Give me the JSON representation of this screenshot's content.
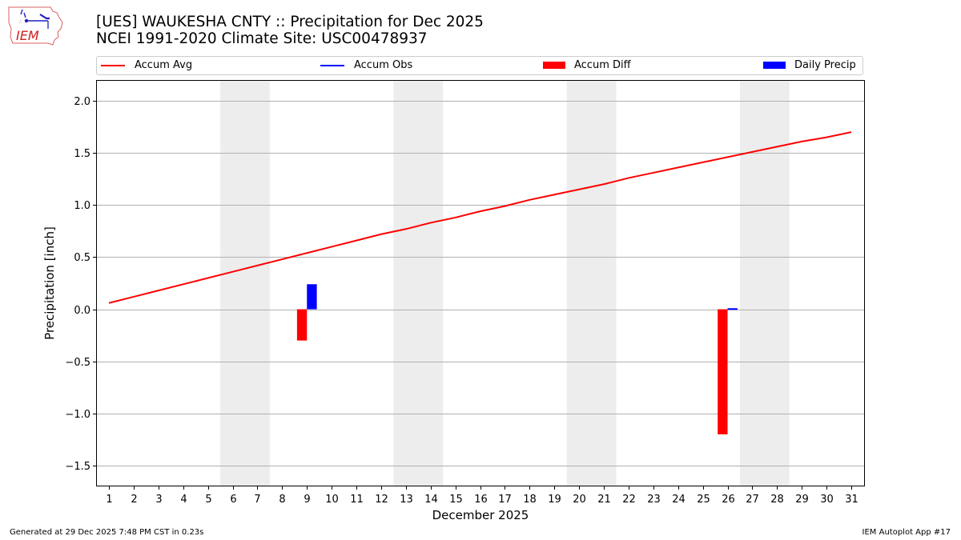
{
  "header": {
    "title_line1": "[UES] WAUKESHA CNTY :: Precipitation for Dec 2025",
    "title_line2": "NCEI 1991-2020 Climate Site: USC00478937",
    "logo_text": "IEM"
  },
  "legend": [
    {
      "label": "Accum Avg",
      "kind": "line",
      "color": "#ff0000"
    },
    {
      "label": "Accum Obs",
      "kind": "line",
      "color": "#0000ff"
    },
    {
      "label": "Accum Diff",
      "kind": "patch",
      "color": "#ff0000"
    },
    {
      "label": "Daily Precip",
      "kind": "patch",
      "color": "#0000ff"
    }
  ],
  "footer": {
    "generated": "Generated at 29 Dec 2025 7:48 PM CST in 0.23s",
    "app": "IEM Autoplot App #17"
  },
  "colors": {
    "accum_avg": "#ff0000",
    "accum_obs": "#0000ff",
    "accum_diff": "#ff0000",
    "daily_precip": "#0000ff",
    "weekend_shade": "#ededed",
    "grid": "#b0b0b0"
  },
  "chart_data": {
    "type": "bar",
    "title": "[UES] WAUKESHA CNTY :: Precipitation for Dec 2025",
    "subtitle": "NCEI 1991-2020 Climate Site: USC00478937",
    "xlabel": "December 2025",
    "ylabel": "Precipitation [inch]",
    "ylim": [
      -1.7,
      2.2
    ],
    "xlim": [
      0.48,
      31.55
    ],
    "yticks": [
      -1.5,
      -1.0,
      -0.5,
      0.0,
      0.5,
      1.0,
      1.5,
      2.0
    ],
    "ytick_labels": [
      "−1.5",
      "−1.0",
      "−0.5",
      "0.0",
      "0.5",
      "1.0",
      "1.5",
      "2.0"
    ],
    "categories": [
      1,
      2,
      3,
      4,
      5,
      6,
      7,
      8,
      9,
      10,
      11,
      12,
      13,
      14,
      15,
      16,
      17,
      18,
      19,
      20,
      21,
      22,
      23,
      24,
      25,
      26,
      27,
      28,
      29,
      30,
      31
    ],
    "grid": "y",
    "legend_position": "top",
    "weekend_shading": [
      [
        5.5,
        7.5
      ],
      [
        12.5,
        14.5
      ],
      [
        19.5,
        21.5
      ],
      [
        26.5,
        28.5
      ]
    ],
    "series": [
      {
        "name": "Accum Avg",
        "type": "line",
        "values": [
          0.06,
          0.12,
          0.18,
          0.24,
          0.3,
          0.36,
          0.42,
          0.48,
          0.54,
          0.6,
          0.66,
          0.72,
          0.77,
          0.83,
          0.88,
          0.94,
          0.99,
          1.05,
          1.1,
          1.15,
          1.2,
          1.26,
          1.31,
          1.36,
          1.41,
          1.46,
          1.51,
          1.56,
          1.61,
          1.65,
          1.7
        ]
      },
      {
        "name": "Accum Obs",
        "type": "line",
        "values": []
      },
      {
        "name": "Accum Diff",
        "type": "bar",
        "points": [
          {
            "day": 9,
            "value": -0.3
          },
          {
            "day": 26,
            "value": -1.2
          }
        ]
      },
      {
        "name": "Daily Precip",
        "type": "bar",
        "points": [
          {
            "day": 9,
            "value": 0.24
          },
          {
            "day": 26,
            "value": 0.01
          }
        ]
      }
    ]
  }
}
